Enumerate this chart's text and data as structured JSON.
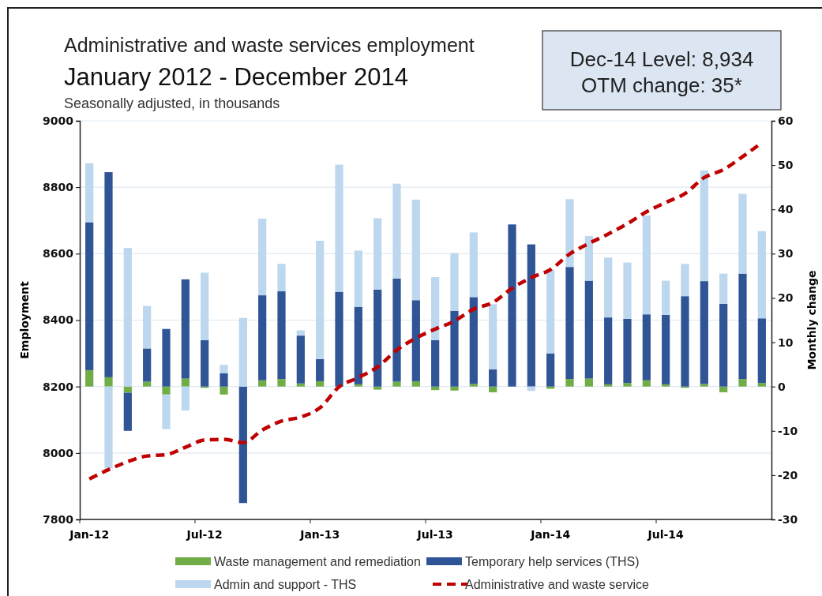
{
  "chart_data": {
    "type": "bar",
    "title": "Administrative and waste services employment",
    "subtitle": "January 2012 - December 2014",
    "annotations": [
      "Seasonally adjusted, in thousands",
      "Dec-14 Level: 8,934",
      "OTM change: 35*"
    ],
    "ylabel": "Employment",
    "y2label": "Monthly change",
    "categories": [
      "Jan-12",
      null,
      null,
      null,
      null,
      null,
      "Jul-12",
      null,
      null,
      null,
      null,
      null,
      "Jan-13",
      null,
      null,
      null,
      null,
      null,
      "Jul-13",
      null,
      null,
      null,
      null,
      null,
      "Jan-14",
      null,
      null,
      null,
      null,
      null,
      "Jul-14",
      null,
      null,
      null,
      null,
      null
    ],
    "stacked": true,
    "grid": "y",
    "legend": "bottom",
    "ylim": [
      7800,
      9000
    ],
    "yticks": [
      7800,
      8000,
      8200,
      8400,
      8600,
      8800,
      9000
    ],
    "y2lim": [
      -30,
      60
    ],
    "y2ticks": [
      -30,
      -20,
      -10,
      0,
      10,
      20,
      30,
      40,
      50,
      60
    ],
    "series": [
      {
        "name": "Waste management and remediation",
        "axis": "y2",
        "color": "#70ad47",
        "values": [
          3.7,
          2.1,
          -1.4,
          1.1,
          -1.8,
          1.8,
          -0.3,
          -1.8,
          0,
          1.4,
          1.7,
          0.7,
          1.2,
          0,
          0.5,
          -0.7,
          1.1,
          1.2,
          -0.8,
          -0.9,
          0.6,
          -1.3,
          0,
          0,
          -0.5,
          1.7,
          1.8,
          0.5,
          0.8,
          1.4,
          0.5,
          -0.3,
          0.6,
          -1.3,
          1.7,
          0.8
        ]
      },
      {
        "name": "Temporary help services (THS)",
        "axis": "y2",
        "color": "#2f5597",
        "values": [
          33.4,
          46.3,
          -8.6,
          7.5,
          13.0,
          22.4,
          10.5,
          3.0,
          -26.3,
          19.2,
          19.8,
          10.8,
          5.0,
          21.4,
          17.5,
          21.9,
          23.3,
          18.3,
          10.5,
          17.1,
          19.6,
          3.9,
          36.6,
          32.1,
          7.5,
          25.3,
          22.1,
          15.1,
          14.5,
          14.9,
          15.7,
          20.4,
          23.2,
          18.7,
          23.8,
          14.6
        ]
      },
      {
        "name": "Admin and support - THS",
        "axis": "y2",
        "color": "#bdd7ee",
        "values": [
          13.3,
          -18.5,
          31.3,
          9.6,
          -7.8,
          -5.4,
          15.2,
          1.9,
          15.5,
          17.3,
          6.2,
          1.2,
          26.7,
          28.7,
          12.7,
          16.1,
          21.4,
          22.7,
          14.2,
          13.0,
          14.6,
          14.7,
          0,
          -1.0,
          18.9,
          15.3,
          10.1,
          13.5,
          12.7,
          22.3,
          7.7,
          7.3,
          25.0,
          6.8,
          18.0,
          19.7
        ]
      },
      {
        "name": "Administrative and waste service",
        "type": "line",
        "axis": "y",
        "color": "#c00000",
        "line_style": "dashed",
        "values": [
          7922,
          7950,
          7974,
          7991,
          7995,
          8017,
          8039,
          8041,
          8031,
          8069,
          8096,
          8108,
          8136,
          8199,
          8227,
          8259,
          8310,
          8346,
          8373,
          8397,
          8433,
          8453,
          8496,
          8528,
          8552,
          8599,
          8631,
          8659,
          8690,
          8726,
          8754,
          8781,
          8829,
          8853,
          8892,
          8934
        ]
      }
    ]
  }
}
